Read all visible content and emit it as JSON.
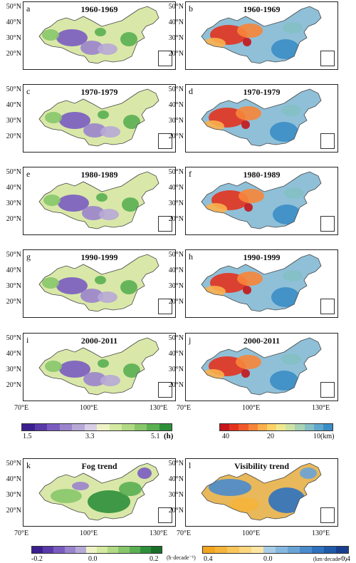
{
  "panels": [
    {
      "label": "a",
      "title": "1960-1969"
    },
    {
      "label": "b",
      "title": "1960-1969"
    },
    {
      "label": "c",
      "title": "1970-1979"
    },
    {
      "label": "d",
      "title": "1970-1979"
    },
    {
      "label": "e",
      "title": "1980-1989"
    },
    {
      "label": "f",
      "title": "1980-1989"
    },
    {
      "label": "g",
      "title": "1990-1999"
    },
    {
      "label": "h",
      "title": "1990-1999"
    },
    {
      "label": "i",
      "title": "2000-2011"
    },
    {
      "label": "j",
      "title": "2000-2011"
    },
    {
      "label": "k",
      "title": "Fog trend"
    },
    {
      "label": "l",
      "title": "Visibility trend"
    }
  ],
  "lat_labels": [
    "50°N",
    "40°N",
    "30°N",
    "20°N"
  ],
  "lon_labels": [
    "70°E",
    "100°E",
    "130°E"
  ],
  "fog_colorbar": {
    "ticks": [
      "1.5",
      "3.3",
      "5.1"
    ],
    "unit": "(h)",
    "colors": [
      "#3b1f8f",
      "#5a3aa8",
      "#7a5cc0",
      "#9a84cc",
      "#b7a9d6",
      "#d7cfe6",
      "#eef2c6",
      "#d4e9a1",
      "#b0da83",
      "#87c66a",
      "#5aaf52",
      "#2e8f3a"
    ]
  },
  "vis_colorbar": {
    "ticks": [
      "40",
      "20",
      "10(km)"
    ],
    "colors": [
      "#c4161c",
      "#e3331f",
      "#f0592b",
      "#f7853a",
      "#fbb04c",
      "#fdd268",
      "#f0e88e",
      "#cfe3a6",
      "#a8d3b5",
      "#84c0c5",
      "#5fa8cc",
      "#3b8dc6"
    ]
  },
  "fog_trend_colorbar": {
    "ticks": [
      "-0.2",
      "0.0",
      "0.2"
    ],
    "unit": "(h·decade⁻¹)",
    "colors": [
      "#3b1f8f",
      "#5a3aa8",
      "#7a5cc0",
      "#9a84cc",
      "#b7a9d6",
      "#eef2c6",
      "#d4e9a1",
      "#b0da83",
      "#87c66a",
      "#5aaf52",
      "#2e8f3a",
      "#1b6e2a"
    ]
  },
  "vis_trend_colorbar": {
    "ticks": [
      "0.4",
      "0.0",
      "-0.4"
    ],
    "unit": "(km·decade⁻¹)",
    "colors": [
      "#f2a51e",
      "#f5b43a",
      "#f8c65a",
      "#fbd77e",
      "#fde6a3",
      "#a9cde6",
      "#86b8df",
      "#6aa3d6",
      "#4a8bcc",
      "#2f72bf",
      "#1f5aa8",
      "#173f8e"
    ]
  },
  "colors": {
    "fog_base": "#d9e8a8",
    "vis_base": "#8fc0d8",
    "trend_base": "#e8b85a"
  }
}
